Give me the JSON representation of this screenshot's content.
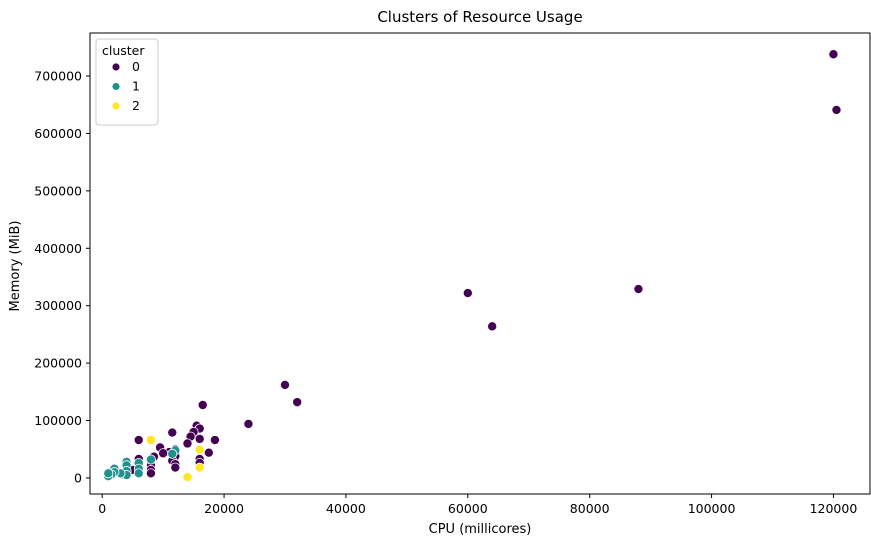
{
  "chart_data": {
    "type": "scatter",
    "title": "Clusters of Resource Usage",
    "xlabel": "CPU (millicores)",
    "ylabel": "Memory (MiB)",
    "xlim": [
      -2000,
      126000
    ],
    "ylim": [
      -28000,
      775000
    ],
    "xticks": [
      0,
      20000,
      40000,
      60000,
      80000,
      100000,
      120000
    ],
    "yticks": [
      0,
      100000,
      200000,
      300000,
      400000,
      500000,
      600000,
      700000
    ],
    "grid": false,
    "legend": {
      "title": "cluster",
      "placement": "top-left",
      "entries": [
        {
          "label": "0",
          "color": "#440154"
        },
        {
          "label": "1",
          "color": "#21918c"
        },
        {
          "label": "2",
          "color": "#fde725"
        }
      ]
    },
    "series": [
      {
        "name": "0",
        "color": "#440154",
        "points": [
          [
            120000,
            738000
          ],
          [
            120500,
            641000
          ],
          [
            88000,
            329000
          ],
          [
            60000,
            322000
          ],
          [
            64000,
            264000
          ],
          [
            30000,
            162000
          ],
          [
            32000,
            132000
          ],
          [
            24000,
            94000
          ],
          [
            16500,
            127000
          ],
          [
            15500,
            91000
          ],
          [
            16000,
            86000
          ],
          [
            15000,
            80000
          ],
          [
            14500,
            72000
          ],
          [
            16000,
            68000
          ],
          [
            18500,
            66000
          ],
          [
            17500,
            44000
          ],
          [
            14000,
            60000
          ],
          [
            11500,
            79000
          ],
          [
            12000,
            50000
          ],
          [
            11000,
            45000
          ],
          [
            12000,
            38000
          ],
          [
            11500,
            30000
          ],
          [
            12000,
            24000
          ],
          [
            12000,
            18000
          ],
          [
            16000,
            33000
          ],
          [
            16000,
            26000
          ],
          [
            9500,
            53000
          ],
          [
            10000,
            43000
          ],
          [
            8500,
            37000
          ],
          [
            8000,
            30000
          ],
          [
            8000,
            22000
          ],
          [
            8000,
            14000
          ],
          [
            8000,
            8000
          ],
          [
            6000,
            66000
          ],
          [
            6000,
            33000
          ],
          [
            6000,
            25000
          ],
          [
            6000,
            18000
          ],
          [
            5000,
            14000
          ],
          [
            4000,
            10000
          ],
          [
            3500,
            6000
          ]
        ]
      },
      {
        "name": "1",
        "color": "#21918c",
        "points": [
          [
            12000,
            48000
          ],
          [
            11500,
            42000
          ],
          [
            8000,
            32000
          ],
          [
            6000,
            26000
          ],
          [
            6000,
            16000
          ],
          [
            6000,
            8000
          ],
          [
            4000,
            28000
          ],
          [
            4000,
            22000
          ],
          [
            4000,
            12000
          ],
          [
            4000,
            5000
          ],
          [
            3000,
            8000
          ],
          [
            2000,
            16000
          ],
          [
            2000,
            10000
          ],
          [
            1500,
            6000
          ],
          [
            1000,
            3000
          ],
          [
            1000,
            8000
          ]
        ]
      },
      {
        "name": "2",
        "color": "#fde725",
        "points": [
          [
            8000,
            66000
          ],
          [
            16000,
            49000
          ],
          [
            16000,
            18000
          ],
          [
            14000,
            1500
          ]
        ]
      }
    ]
  }
}
